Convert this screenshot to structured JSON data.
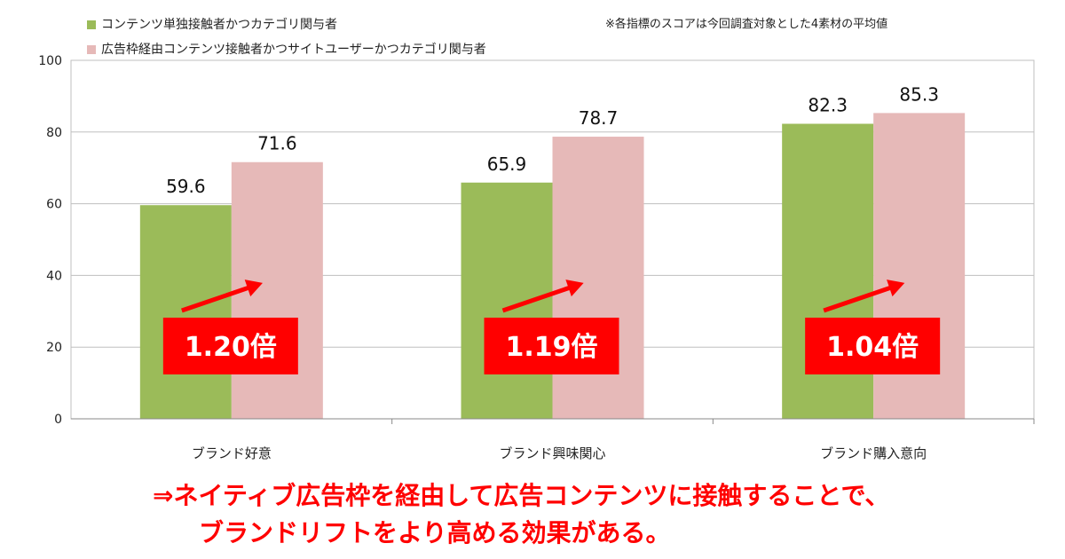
{
  "legend": [
    {
      "label": "コンテンツ単独接触者かつカテゴリ関与者",
      "color": "#9bbb59"
    },
    {
      "label": "広告枠経由コンテンツ接触者かつサイトユーザーかつカテゴリ関与者",
      "color": "#e6b9b8"
    }
  ],
  "note": "※各指標のスコアは今回調査対象とした4素材の平均値",
  "chart_data": {
    "type": "bar",
    "categories": [
      "ブランド好意",
      "ブランド興味関心",
      "ブランド購入意向"
    ],
    "series": [
      {
        "name": "コンテンツ単独接触者かつカテゴリ関与者",
        "values": [
          59.6,
          65.9,
          82.3
        ],
        "color": "#9bbb59"
      },
      {
        "name": "広告枠経由コンテンツ接触者かつサイトユーザーかつカテゴリ関与者",
        "values": [
          71.6,
          78.7,
          85.3
        ],
        "color": "#e6b9b8"
      }
    ],
    "data_labels": [
      [
        "59.6",
        "65.9",
        "82.3"
      ],
      [
        "71.6",
        "78.7",
        "85.3"
      ]
    ],
    "ylim": [
      0,
      100
    ],
    "yticks": [
      0,
      20,
      40,
      60,
      80,
      100
    ],
    "grid": true,
    "annotations": [
      "1.20倍",
      "1.19倍",
      "1.04倍"
    ],
    "annotation_color": "#ff0000",
    "xlabel": "",
    "ylabel": ""
  },
  "conclusion": {
    "line1": "⇒ネイティブ広告枠を経由して広告コンテンツに接触することで、",
    "line2": "ブランドリフトをより高める効果がある。"
  }
}
